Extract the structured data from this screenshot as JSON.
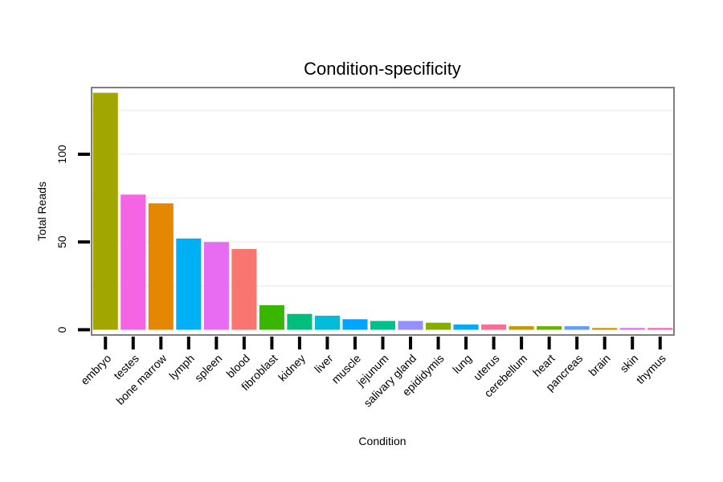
{
  "chart_data": {
    "type": "bar",
    "title": "Condition-specificity",
    "xlabel": "Condition",
    "ylabel": "Total Reads",
    "ylim": [
      -3,
      138
    ],
    "yticks": [
      0,
      50,
      100
    ],
    "grid": true,
    "legend": "none",
    "categories": [
      "embryo",
      "testes",
      "bone marrow",
      "lymph",
      "spleen",
      "blood",
      "fibroblast",
      "kidney",
      "liver",
      "muscle",
      "jejunum",
      "salivary gland",
      "epididymis",
      "lung",
      "uterus",
      "cerebellum",
      "heart",
      "pancreas",
      "brain",
      "skin",
      "thymus"
    ],
    "values": [
      135,
      77,
      72,
      52,
      50,
      46,
      14,
      9,
      8,
      6,
      5,
      5,
      4,
      3,
      3,
      2,
      2,
      2,
      1,
      1,
      1
    ],
    "colors": [
      "#A3A500",
      "#F564E3",
      "#E58700",
      "#00B0F6",
      "#E76BF3",
      "#F8766D",
      "#39B600",
      "#00BF7D",
      "#00BCD8",
      "#00A5FF",
      "#00C08B",
      "#9590FF",
      "#85AD00",
      "#00ABFD",
      "#FF6C91",
      "#C99800",
      "#6BB100",
      "#619CFF",
      "#D89000",
      "#DC71FA",
      "#FF62BC"
    ]
  }
}
